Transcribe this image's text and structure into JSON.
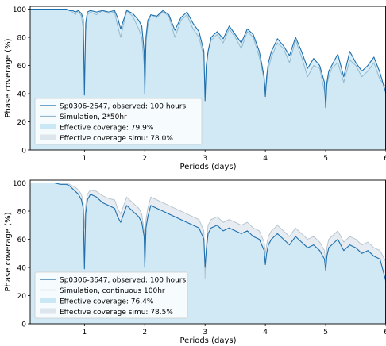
{
  "chart_data": [
    {
      "type": "line",
      "xlabel": "Periods (days)",
      "ylabel": "Phase coverage (%)",
      "xlim": [
        0.1,
        6.0
      ],
      "ylim": [
        0,
        102
      ],
      "xticks": [
        1,
        2,
        3,
        4,
        5,
        6
      ],
      "yticks": [
        0,
        20,
        40,
        60,
        80,
        100
      ],
      "legend_position": "lower-left",
      "series": [
        {
          "name": "Sp0306-2647, observed: 100 hours",
          "kind": "line",
          "color": "#1f6fad",
          "x": [
            0.1,
            0.2,
            0.3,
            0.4,
            0.5,
            0.6,
            0.7,
            0.75,
            0.8,
            0.85,
            0.9,
            0.95,
            0.98,
            1.0,
            1.02,
            1.05,
            1.1,
            1.2,
            1.3,
            1.4,
            1.5,
            1.55,
            1.6,
            1.7,
            1.8,
            1.9,
            1.95,
            1.99,
            2.0,
            2.02,
            2.05,
            2.1,
            2.2,
            2.3,
            2.4,
            2.5,
            2.6,
            2.7,
            2.8,
            2.9,
            2.98,
            3.0,
            3.02,
            3.05,
            3.1,
            3.2,
            3.3,
            3.4,
            3.5,
            3.6,
            3.7,
            3.8,
            3.9,
            3.98,
            4.0,
            4.02,
            4.05,
            4.1,
            4.2,
            4.3,
            4.4,
            4.5,
            4.6,
            4.7,
            4.8,
            4.9,
            4.98,
            5.0,
            5.02,
            5.05,
            5.1,
            5.2,
            5.3,
            5.4,
            5.5,
            5.6,
            5.7,
            5.8,
            5.9,
            6.0
          ],
          "y": [
            100,
            100,
            100,
            100,
            100,
            100,
            100,
            99,
            99,
            98,
            99,
            97,
            93,
            39,
            90,
            98,
            99,
            98,
            99,
            98,
            99,
            94,
            86,
            99,
            97,
            92,
            88,
            70,
            40,
            80,
            92,
            96,
            95,
            99,
            96,
            85,
            94,
            98,
            90,
            84,
            70,
            35,
            60,
            70,
            80,
            84,
            79,
            88,
            82,
            76,
            86,
            82,
            70,
            52,
            38,
            52,
            62,
            70,
            79,
            74,
            67,
            80,
            70,
            58,
            65,
            60,
            48,
            30,
            48,
            56,
            60,
            68,
            52,
            70,
            62,
            56,
            60,
            66,
            55,
            40
          ]
        },
        {
          "name": "Simulation, 2*50hr",
          "kind": "line",
          "color": "#8fb6cc",
          "x": [
            0.1,
            0.2,
            0.3,
            0.4,
            0.5,
            0.6,
            0.7,
            0.75,
            0.8,
            0.85,
            0.9,
            0.95,
            0.98,
            1.0,
            1.02,
            1.05,
            1.1,
            1.2,
            1.3,
            1.4,
            1.5,
            1.55,
            1.6,
            1.7,
            1.8,
            1.9,
            1.95,
            1.99,
            2.0,
            2.02,
            2.05,
            2.1,
            2.2,
            2.3,
            2.4,
            2.5,
            2.6,
            2.7,
            2.8,
            2.9,
            2.98,
            3.0,
            3.02,
            3.05,
            3.1,
            3.2,
            3.3,
            3.4,
            3.5,
            3.6,
            3.7,
            3.8,
            3.9,
            3.98,
            4.0,
            4.02,
            4.05,
            4.1,
            4.2,
            4.3,
            4.4,
            4.5,
            4.6,
            4.7,
            4.8,
            4.9,
            4.98,
            5.0,
            5.02,
            5.05,
            5.1,
            5.2,
            5.3,
            5.4,
            5.5,
            5.6,
            5.7,
            5.8,
            5.9,
            6.0
          ],
          "y": [
            100,
            100,
            100,
            100,
            100,
            100,
            100,
            99,
            98,
            96,
            99,
            95,
            86,
            48,
            84,
            96,
            98,
            96,
            99,
            97,
            98,
            88,
            80,
            99,
            95,
            86,
            80,
            60,
            46,
            76,
            88,
            96,
            94,
            98,
            95,
            80,
            92,
            96,
            86,
            80,
            66,
            42,
            56,
            70,
            78,
            82,
            76,
            86,
            80,
            72,
            84,
            80,
            66,
            50,
            44,
            48,
            58,
            66,
            76,
            72,
            62,
            78,
            66,
            52,
            60,
            58,
            42,
            35,
            46,
            52,
            58,
            62,
            48,
            64,
            60,
            52,
            56,
            62,
            50,
            45
          ]
        },
        {
          "name": "Effective coverage: 79.9%",
          "kind": "fill",
          "color": "#c9e7f5"
        },
        {
          "name": "Effective coverage simu: 78.0%",
          "kind": "fill",
          "color": "#dde6ec"
        }
      ]
    },
    {
      "type": "line",
      "xlabel": "Periods (days)",
      "ylabel": "Phase coverage (%)",
      "xlim": [
        0.1,
        6.0
      ],
      "ylim": [
        0,
        102
      ],
      "xticks": [
        1,
        2,
        3,
        4,
        5,
        6
      ],
      "yticks": [
        0,
        20,
        40,
        60,
        80,
        100
      ],
      "legend_position": "lower-left",
      "series": [
        {
          "name": "Sp0306-3647, observed: 100 hours",
          "kind": "line",
          "color": "#1f6fad",
          "x": [
            0.1,
            0.2,
            0.3,
            0.4,
            0.5,
            0.6,
            0.7,
            0.75,
            0.8,
            0.85,
            0.9,
            0.95,
            0.98,
            1.0,
            1.02,
            1.05,
            1.1,
            1.2,
            1.3,
            1.4,
            1.5,
            1.55,
            1.6,
            1.7,
            1.8,
            1.9,
            1.95,
            1.99,
            2.0,
            2.02,
            2.05,
            2.1,
            2.2,
            2.3,
            2.4,
            2.5,
            2.6,
            2.7,
            2.8,
            2.9,
            2.98,
            3.0,
            3.02,
            3.05,
            3.1,
            3.2,
            3.3,
            3.4,
            3.5,
            3.6,
            3.7,
            3.8,
            3.9,
            3.98,
            4.0,
            4.02,
            4.05,
            4.1,
            4.2,
            4.3,
            4.4,
            4.5,
            4.6,
            4.7,
            4.8,
            4.9,
            4.98,
            5.0,
            5.02,
            5.05,
            5.1,
            5.2,
            5.3,
            5.4,
            5.5,
            5.6,
            5.7,
            5.8,
            5.9,
            6.0
          ],
          "y": [
            100,
            100,
            100,
            100,
            100,
            99,
            99,
            98,
            96,
            94,
            92,
            88,
            82,
            39,
            78,
            88,
            92,
            90,
            86,
            84,
            82,
            76,
            72,
            84,
            80,
            76,
            72,
            62,
            40,
            68,
            76,
            84,
            82,
            80,
            78,
            76,
            74,
            72,
            70,
            68,
            60,
            40,
            52,
            64,
            68,
            70,
            66,
            68,
            66,
            64,
            66,
            62,
            60,
            52,
            42,
            50,
            56,
            60,
            64,
            60,
            56,
            62,
            58,
            54,
            56,
            52,
            46,
            38,
            48,
            54,
            56,
            60,
            52,
            56,
            54,
            50,
            52,
            48,
            46,
            30
          ]
        },
        {
          "name": "Simulation, continuous 100hr",
          "kind": "line",
          "color": "#b3c2cc",
          "x": [
            0.1,
            0.2,
            0.3,
            0.4,
            0.5,
            0.6,
            0.7,
            0.75,
            0.8,
            0.85,
            0.9,
            0.95,
            0.98,
            1.0,
            1.02,
            1.05,
            1.1,
            1.2,
            1.3,
            1.4,
            1.5,
            1.55,
            1.6,
            1.7,
            1.8,
            1.9,
            1.95,
            1.99,
            2.0,
            2.02,
            2.05,
            2.1,
            2.2,
            2.3,
            2.4,
            2.5,
            2.6,
            2.7,
            2.8,
            2.9,
            2.98,
            3.0,
            3.02,
            3.05,
            3.1,
            3.2,
            3.3,
            3.4,
            3.5,
            3.6,
            3.7,
            3.8,
            3.9,
            3.98,
            4.0,
            4.02,
            4.05,
            4.1,
            4.2,
            4.3,
            4.4,
            4.5,
            4.6,
            4.7,
            4.8,
            4.9,
            4.98,
            5.0,
            5.02,
            5.05,
            5.1,
            5.2,
            5.3,
            5.4,
            5.5,
            5.6,
            5.7,
            5.8,
            5.9,
            6.0
          ],
          "y": [
            100,
            100,
            100,
            100,
            100,
            100,
            100,
            99,
            98,
            97,
            95,
            92,
            86,
            68,
            84,
            92,
            95,
            94,
            91,
            89,
            88,
            82,
            78,
            90,
            86,
            82,
            78,
            66,
            56,
            74,
            82,
            90,
            88,
            86,
            84,
            82,
            80,
            78,
            76,
            74,
            66,
            32,
            56,
            70,
            74,
            76,
            72,
            74,
            72,
            70,
            72,
            68,
            66,
            58,
            50,
            56,
            62,
            66,
            70,
            66,
            62,
            68,
            64,
            60,
            62,
            58,
            52,
            44,
            54,
            60,
            62,
            66,
            58,
            62,
            60,
            56,
            58,
            54,
            52,
            44
          ]
        },
        {
          "name": "Effective coverage: 76.4%",
          "kind": "fill",
          "color": "#c9e7f5"
        },
        {
          "name": "Effective coverage simu: 78.5%",
          "kind": "fill",
          "color": "#dde6ec"
        }
      ]
    }
  ]
}
